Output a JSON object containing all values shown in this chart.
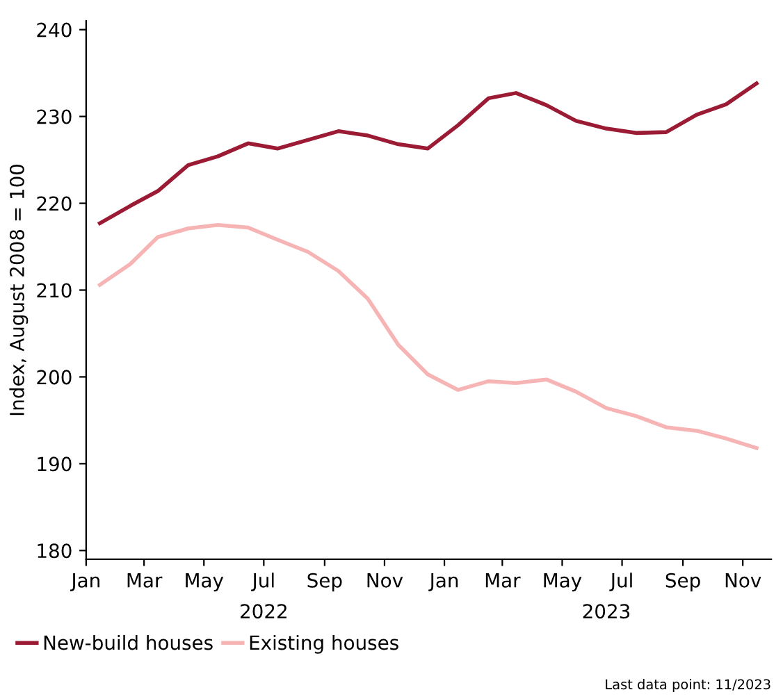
{
  "chart_data": {
    "type": "line",
    "ylabel": "Index, August 2008 = 100",
    "x": [
      "2022-01-15",
      "2022-02-15",
      "2022-03-15",
      "2022-04-15",
      "2022-05-15",
      "2022-06-15",
      "2022-07-15",
      "2022-08-15",
      "2022-09-15",
      "2022-10-15",
      "2022-11-15",
      "2022-12-15",
      "2023-01-15",
      "2023-02-15",
      "2023-03-15",
      "2023-04-15",
      "2023-05-15",
      "2023-06-15",
      "2023-07-15",
      "2023-08-15",
      "2023-09-15",
      "2023-10-15",
      "2023-11-15"
    ],
    "series": [
      {
        "name": "New-build houses",
        "color": "#9b1b35",
        "values": [
          217.7,
          219.7,
          221.4,
          224.4,
          225.4,
          226.9,
          226.3,
          227.3,
          228.3,
          227.8,
          226.8,
          226.3,
          229.0,
          232.1,
          232.7,
          231.3,
          229.5,
          228.6,
          228.1,
          228.2,
          230.2,
          231.4,
          233.8
        ]
      },
      {
        "name": "Existing houses",
        "color": "#f7b4b4",
        "values": [
          210.6,
          213.0,
          216.1,
          217.1,
          217.5,
          217.2,
          215.8,
          214.4,
          212.2,
          209.0,
          203.7,
          200.3,
          198.5,
          199.5,
          199.3,
          199.7,
          198.3,
          196.4,
          195.5,
          194.2,
          193.8,
          192.9,
          191.8
        ]
      }
    ],
    "ylim": [
      179,
      241
    ],
    "yticks": [
      180,
      190,
      200,
      210,
      220,
      230,
      240
    ],
    "xlim": [
      "2022-01-01",
      "2023-11-30"
    ],
    "xticks": [
      {
        "value": "2022-01-01",
        "label": "Jan"
      },
      {
        "value": "2022-03-01",
        "label": "Mar"
      },
      {
        "value": "2022-05-01",
        "label": "May"
      },
      {
        "value": "2022-07-01",
        "label": "Jul"
      },
      {
        "value": "2022-09-01",
        "label": "Sep"
      },
      {
        "value": "2022-11-01",
        "label": "Nov"
      },
      {
        "value": "2023-01-01",
        "label": "Jan"
      },
      {
        "value": "2023-03-01",
        "label": "Mar"
      },
      {
        "value": "2023-05-01",
        "label": "May"
      },
      {
        "value": "2023-07-01",
        "label": "Jul"
      },
      {
        "value": "2023-09-01",
        "label": "Sep"
      },
      {
        "value": "2023-11-01",
        "label": "Nov"
      }
    ],
    "x2lim": [
      "2022-01-01",
      "2023-11-30"
    ],
    "x2ticks": [
      {
        "value": "2022-07-01",
        "label": "2022"
      },
      {
        "value": "2023-06-15",
        "label": "2023"
      }
    ],
    "grid": false,
    "legend": "bottom left",
    "marker": "none",
    "line_style": "solid",
    "annotations": [
      "Last data point: 11/2023"
    ]
  }
}
